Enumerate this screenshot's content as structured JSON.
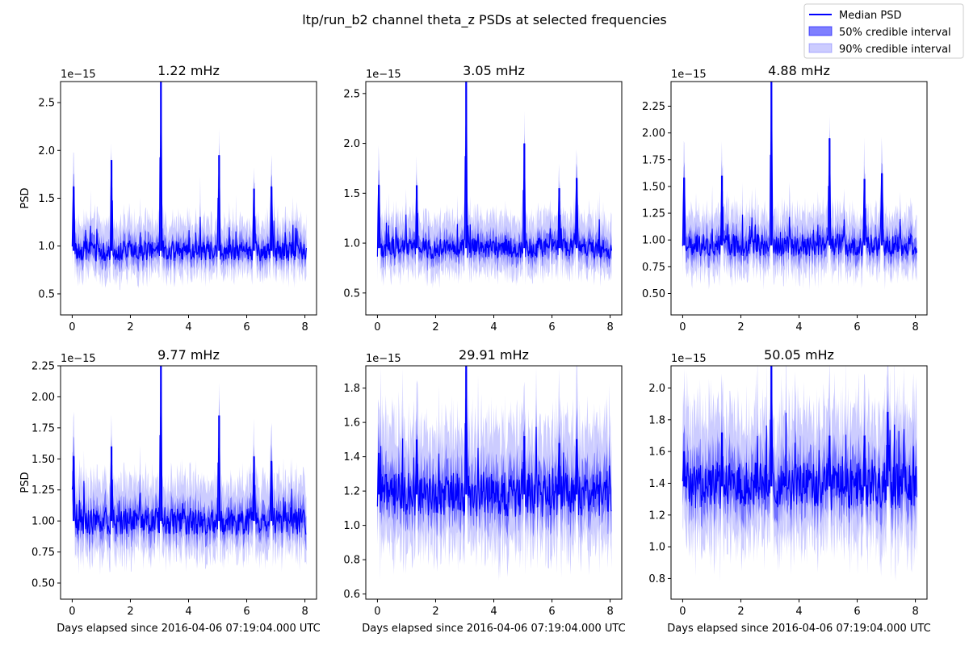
{
  "figure": {
    "suptitle": "ltp/run_b2 channel theta_z PSDs at selected frequencies"
  },
  "legend": {
    "placement": "top-right",
    "entries": [
      {
        "label": "Median PSD",
        "kind": "line",
        "color": "#0000ff"
      },
      {
        "label": "50% credible interval",
        "kind": "band",
        "color": "#0000ff",
        "alpha": 0.5
      },
      {
        "label": "90% credible interval",
        "kind": "band",
        "color": "#0000ff",
        "alpha": 0.2
      }
    ]
  },
  "chart_data": [
    {
      "type": "line",
      "title": "1.22 mHz",
      "xlabel": "",
      "ylabel": "PSD",
      "offset_text": "1e−15",
      "xlim": [
        -0.4,
        8.4
      ],
      "ylim": [
        0.28,
        2.72
      ],
      "xticks": [
        0,
        2,
        4,
        6,
        8
      ],
      "yticks": [
        0.5,
        1.0,
        1.5,
        2.0,
        2.5
      ],
      "yticklabels": [
        "0.5",
        "1.0",
        "1.5",
        "2.0",
        "2.5"
      ],
      "baseline": 0.95,
      "spikes": [
        [
          0.05,
          1.62
        ],
        [
          1.35,
          1.9
        ],
        [
          3.05,
          2.72
        ],
        [
          5.05,
          1.95
        ],
        [
          6.25,
          1.6
        ],
        [
          6.85,
          1.62
        ]
      ]
    },
    {
      "type": "line",
      "title": "3.05 mHz",
      "xlabel": "",
      "ylabel": "",
      "offset_text": "1e−15",
      "xlim": [
        -0.4,
        8.4
      ],
      "ylim": [
        0.28,
        2.62
      ],
      "xticks": [
        0,
        2,
        4,
        6,
        8
      ],
      "yticks": [
        0.5,
        1.0,
        1.5,
        2.0,
        2.5
      ],
      "yticklabels": [
        "0.5",
        "1.0",
        "1.5",
        "2.0",
        "2.5"
      ],
      "baseline": 0.95,
      "spikes": [
        [
          0.05,
          1.58
        ],
        [
          1.35,
          1.58
        ],
        [
          3.05,
          2.62
        ],
        [
          5.05,
          2.0
        ],
        [
          6.25,
          1.55
        ],
        [
          6.85,
          1.65
        ]
      ]
    },
    {
      "type": "line",
      "title": "4.88 mHz",
      "xlabel": "",
      "ylabel": "",
      "offset_text": "1e−15",
      "xlim": [
        -0.4,
        8.4
      ],
      "ylim": [
        0.3,
        2.48
      ],
      "xticks": [
        0,
        2,
        4,
        6,
        8
      ],
      "yticks": [
        0.5,
        0.75,
        1.0,
        1.25,
        1.5,
        1.75,
        2.0,
        2.25
      ],
      "yticklabels": [
        "0.50",
        "0.75",
        "1.00",
        "1.25",
        "1.50",
        "1.75",
        "2.00",
        "2.25"
      ],
      "baseline": 0.95,
      "spikes": [
        [
          0.05,
          1.58
        ],
        [
          1.35,
          1.6
        ],
        [
          3.05,
          2.48
        ],
        [
          5.05,
          1.95
        ],
        [
          6.25,
          1.57
        ],
        [
          6.85,
          1.62
        ]
      ]
    },
    {
      "type": "line",
      "title": "9.77 mHz",
      "xlabel": "Days elapsed since 2016-04-06 07:19:04.000 UTC",
      "ylabel": "PSD",
      "offset_text": "1e−15",
      "xlim": [
        -0.4,
        8.4
      ],
      "ylim": [
        0.37,
        2.25
      ],
      "xticks": [
        0,
        2,
        4,
        6,
        8
      ],
      "yticks": [
        0.5,
        0.75,
        1.0,
        1.25,
        1.5,
        1.75,
        2.0,
        2.25
      ],
      "yticklabels": [
        "0.50",
        "0.75",
        "1.00",
        "1.25",
        "1.50",
        "1.75",
        "2.00",
        "2.25"
      ],
      "baseline": 1.0,
      "spikes": [
        [
          0.05,
          1.52
        ],
        [
          1.35,
          1.6
        ],
        [
          3.05,
          2.25
        ],
        [
          5.05,
          1.85
        ],
        [
          6.25,
          1.52
        ],
        [
          6.85,
          1.48
        ]
      ]
    },
    {
      "type": "line",
      "title": "29.91 mHz",
      "xlabel": "Days elapsed since 2016-04-06 07:19:04.000 UTC",
      "ylabel": "",
      "offset_text": "1e−15",
      "xlim": [
        -0.4,
        8.4
      ],
      "ylim": [
        0.57,
        1.93
      ],
      "xticks": [
        0,
        2,
        4,
        6,
        8
      ],
      "yticks": [
        0.6,
        0.8,
        1.0,
        1.2,
        1.4,
        1.6,
        1.8
      ],
      "yticklabels": [
        "0.6",
        "0.8",
        "1.0",
        "1.2",
        "1.4",
        "1.6",
        "1.8"
      ],
      "baseline": 1.18,
      "spikes": [
        [
          0.05,
          1.42
        ],
        [
          1.35,
          1.5
        ],
        [
          3.05,
          1.93
        ],
        [
          5.05,
          1.52
        ],
        [
          6.25,
          1.48
        ],
        [
          6.85,
          1.5
        ]
      ]
    },
    {
      "type": "line",
      "title": "50.05 mHz",
      "xlabel": "Days elapsed since 2016-04-06 07:19:04.000 UTC",
      "ylabel": "",
      "offset_text": "1e−15",
      "xlim": [
        -0.4,
        8.4
      ],
      "ylim": [
        0.67,
        2.14
      ],
      "xticks": [
        0,
        2,
        4,
        6,
        8
      ],
      "yticks": [
        0.8,
        1.0,
        1.2,
        1.4,
        1.6,
        1.8,
        2.0
      ],
      "yticklabels": [
        "0.8",
        "1.0",
        "1.2",
        "1.4",
        "1.6",
        "1.8",
        "2.0"
      ],
      "baseline": 1.38,
      "spikes": [
        [
          0.05,
          1.6
        ],
        [
          1.35,
          1.72
        ],
        [
          3.05,
          2.14
        ],
        [
          5.05,
          1.7
        ],
        [
          6.25,
          1.7
        ],
        [
          7.05,
          1.85
        ]
      ]
    }
  ]
}
